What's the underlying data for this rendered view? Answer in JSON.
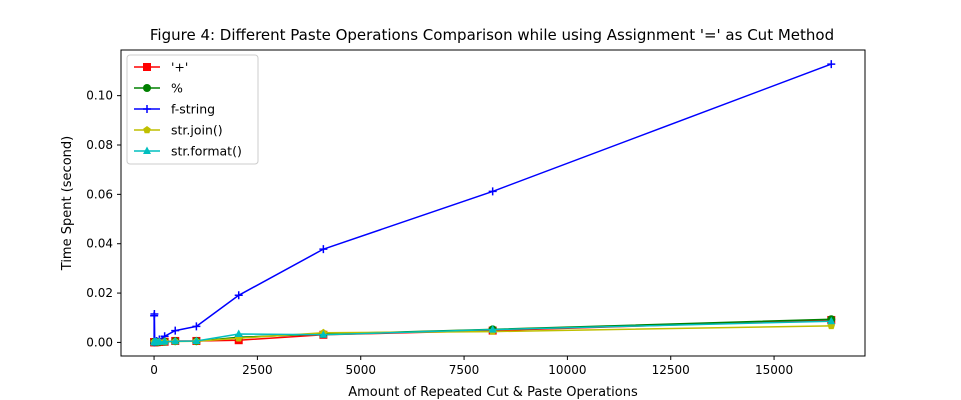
{
  "chart_data": {
    "type": "line",
    "title": "Figure 4: Different Paste Operations Comparison while using Assignment '=' as Cut Method",
    "xlabel": "Amount of Repeated Cut & Paste Operations",
    "ylabel": "Time Spent (second)",
    "xlim": [
      -800,
      17200
    ],
    "ylim": [
      -0.0055,
      0.1185
    ],
    "xticks": [
      0,
      2500,
      5000,
      7500,
      10000,
      12500,
      15000
    ],
    "xtick_labels": [
      "0",
      "2500",
      "5000",
      "7500",
      "10000",
      "12500",
      "15000"
    ],
    "yticks": [
      0.0,
      0.02,
      0.04,
      0.06,
      0.08,
      0.1
    ],
    "ytick_labels": [
      "0.00",
      "0.02",
      "0.04",
      "0.06",
      "0.08",
      "0.10"
    ],
    "grid": false,
    "legend_position": "top-left",
    "series": [
      {
        "name": "'+'",
        "color": "#ff0000",
        "marker": "square",
        "x": [
          1,
          2,
          4,
          8,
          16,
          32,
          64,
          128,
          256,
          512,
          1024,
          2048,
          4096,
          8192,
          16384
        ],
        "y": [
          0.0001,
          0.0001,
          0.0001,
          0.0001,
          0.0001,
          0.0001,
          0.0001,
          0.0002,
          0.0003,
          0.0006,
          0.0006,
          0.0009,
          0.0031,
          0.0048,
          0.0091
        ]
      },
      {
        "name": "%",
        "color": "#008000",
        "marker": "circle",
        "x": [
          1,
          2,
          4,
          8,
          16,
          32,
          64,
          128,
          256,
          512,
          1024,
          2048,
          4096,
          8192,
          16384
        ],
        "y": [
          0.0001,
          0.0001,
          0.0001,
          0.0001,
          0.0001,
          0.0001,
          0.0001,
          0.0002,
          0.0003,
          0.0005,
          0.0005,
          0.0021,
          0.0034,
          0.0053,
          0.0094
        ]
      },
      {
        "name": "f-string",
        "color": "#0000ff",
        "marker": "plus",
        "x": [
          1,
          2,
          4,
          8,
          16,
          32,
          64,
          128,
          256,
          512,
          1024,
          2048,
          4096,
          8192,
          16384
        ],
        "y": [
          0.0001,
          0.0108,
          0.0002,
          0.0115,
          0.0002,
          0.0003,
          0.0006,
          0.0012,
          0.0025,
          0.0048,
          0.0065,
          0.0191,
          0.0378,
          0.0612,
          0.1128
        ]
      },
      {
        "name": "str.join()",
        "color": "#bfbf00",
        "marker": "pentagon",
        "x": [
          1,
          2,
          4,
          8,
          16,
          32,
          64,
          128,
          256,
          512,
          1024,
          2048,
          4096,
          8192,
          16384
        ],
        "y": [
          0.0001,
          0.0001,
          0.0001,
          0.0001,
          0.0001,
          0.0001,
          0.0001,
          0.0002,
          0.0003,
          0.0004,
          0.0005,
          0.0017,
          0.0039,
          0.0044,
          0.0067
        ]
      },
      {
        "name": "str.format()",
        "color": "#00bfbf",
        "marker": "triangle",
        "x": [
          1,
          2,
          4,
          8,
          16,
          32,
          64,
          128,
          256,
          512,
          1024,
          2048,
          4096,
          8192,
          16384
        ],
        "y": [
          0.0001,
          0.0001,
          0.0001,
          0.0001,
          0.0001,
          0.0001,
          0.0002,
          0.0002,
          0.0003,
          0.0005,
          0.0006,
          0.0034,
          0.0031,
          0.0052,
          0.0086
        ]
      }
    ]
  }
}
